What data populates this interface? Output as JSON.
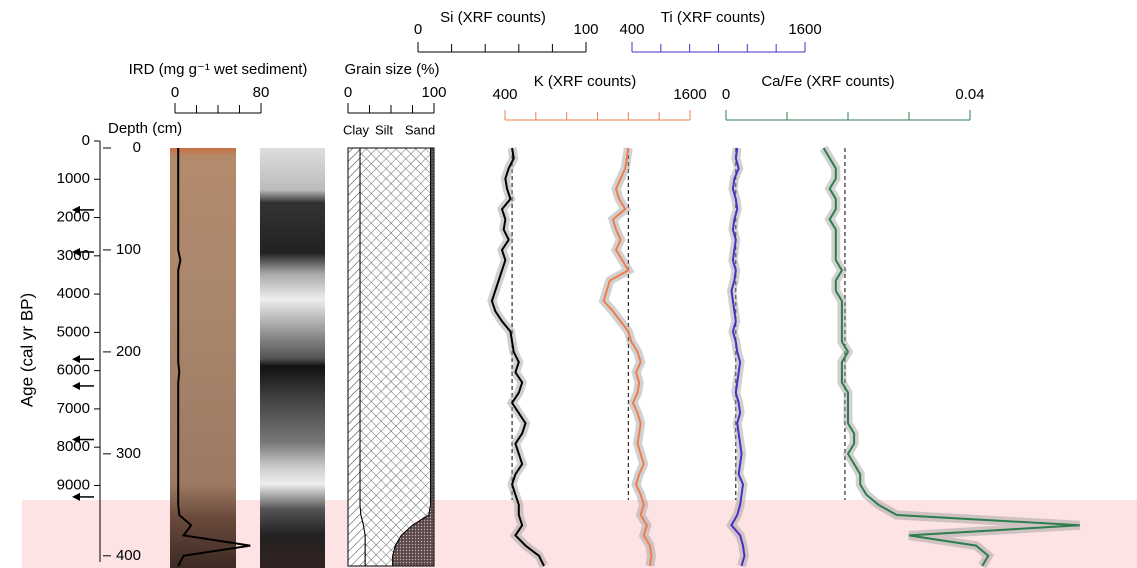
{
  "chart_data": [
    {
      "type": "age-axis",
      "ylabel": "Age (cal yr BP)",
      "ylim": [
        0,
        11000
      ],
      "yticks": [
        0,
        1000,
        2000,
        3000,
        4000,
        5000,
        6000,
        7000,
        8000,
        9000
      ],
      "markers": [
        1800,
        2900,
        5700,
        6400,
        7800,
        9300
      ]
    },
    {
      "type": "depth-axis",
      "ylabel": "Depth (cm)",
      "ylim": [
        0,
        410
      ],
      "yticks": [
        0,
        100,
        200,
        300,
        400
      ]
    },
    {
      "type": "line",
      "xlabel": "IRD (mg g⁻¹ wet sediment)",
      "xlim": [
        0,
        80
      ],
      "xticks": [
        0,
        80
      ],
      "xminorticks": [
        20,
        40,
        60
      ],
      "color": "#000000",
      "y": [
        0,
        10,
        20,
        30,
        40,
        50,
        60,
        70,
        80,
        90,
        100,
        110,
        120,
        130,
        140,
        150,
        160,
        170,
        180,
        190,
        200,
        210,
        220,
        230,
        240,
        250,
        260,
        270,
        280,
        290,
        300,
        310,
        320,
        330,
        340,
        350,
        360,
        370,
        380,
        390,
        400,
        410
      ],
      "values": [
        3,
        3,
        3,
        3,
        3,
        3,
        3,
        3,
        3,
        3,
        3,
        5,
        3,
        3,
        3,
        3,
        3,
        3,
        3,
        3,
        3,
        3,
        4,
        3,
        3,
        3,
        3,
        3,
        3,
        3,
        3,
        3,
        3,
        3,
        3,
        3,
        4,
        15,
        8,
        70,
        8,
        3
      ]
    },
    {
      "type": "stacked-area",
      "xlabel": "Grain size (%)",
      "xlim": [
        0,
        100
      ],
      "xticks": [
        0,
        100
      ],
      "xminorticks": [
        25,
        50,
        75
      ],
      "y": [
        0,
        10,
        20,
        30,
        40,
        50,
        60,
        70,
        80,
        90,
        100,
        110,
        120,
        130,
        140,
        150,
        160,
        170,
        180,
        190,
        200,
        210,
        220,
        230,
        240,
        250,
        260,
        270,
        280,
        290,
        300,
        310,
        320,
        330,
        340,
        350,
        360,
        370,
        380,
        390,
        400,
        410
      ],
      "series": [
        {
          "name": "Clay",
          "values": [
            14,
            14,
            14,
            14,
            14,
            14,
            14,
            14,
            14,
            14,
            14,
            14,
            14,
            14,
            14,
            14,
            14,
            14,
            14,
            14,
            14,
            14,
            14,
            14,
            14,
            14,
            14,
            14,
            14,
            14,
            14,
            14,
            14,
            14,
            14,
            14,
            15,
            18,
            20,
            20,
            20,
            20
          ]
        },
        {
          "name": "Silt",
          "values": [
            82,
            82,
            82,
            82,
            82,
            82,
            82,
            82,
            82,
            82,
            82,
            82,
            82,
            82,
            82,
            82,
            82,
            82,
            82,
            82,
            82,
            82,
            82,
            82,
            82,
            82,
            82,
            82,
            82,
            82,
            82,
            82,
            82,
            82,
            82,
            82,
            79,
            57,
            42,
            35,
            32,
            32
          ]
        },
        {
          "name": "Sand",
          "values": [
            4,
            4,
            4,
            4,
            4,
            4,
            4,
            4,
            4,
            4,
            4,
            4,
            4,
            4,
            4,
            4,
            4,
            4,
            4,
            4,
            4,
            4,
            4,
            4,
            4,
            4,
            4,
            4,
            4,
            4,
            4,
            4,
            4,
            4,
            4,
            4,
            6,
            25,
            38,
            45,
            48,
            48
          ]
        }
      ]
    },
    {
      "type": "line",
      "xlabel": "Si (XRF counts)",
      "xlim": [
        0,
        100
      ],
      "xticks": [
        0,
        100
      ],
      "xminorticks": [
        20,
        40,
        60,
        80
      ],
      "color": "#000000",
      "mean": 56,
      "y": [
        0,
        10,
        20,
        30,
        40,
        50,
        60,
        70,
        80,
        90,
        100,
        110,
        120,
        130,
        140,
        150,
        160,
        170,
        180,
        190,
        200,
        210,
        220,
        230,
        240,
        250,
        260,
        270,
        280,
        290,
        300,
        310,
        320,
        330,
        340,
        350,
        360,
        370,
        380,
        390,
        400,
        410
      ],
      "values": [
        56,
        57,
        54,
        52,
        53,
        55,
        50,
        52,
        51,
        54,
        50,
        52,
        50,
        48,
        46,
        44,
        46,
        50,
        55,
        56,
        57,
        60,
        58,
        62,
        60,
        56,
        60,
        64,
        62,
        58,
        60,
        62,
        58,
        56,
        58,
        60,
        60,
        62,
        58,
        64,
        72,
        75
      ]
    },
    {
      "type": "line",
      "xlabel": "K (XRF counts)",
      "xlim": [
        400,
        1600
      ],
      "xticks": [
        400,
        1600
      ],
      "xminorticks": [
        600,
        800,
        1000,
        1200,
        1400
      ],
      "color": "#ee7d4e",
      "mean": 1200,
      "y": [
        0,
        10,
        20,
        30,
        40,
        50,
        60,
        70,
        80,
        90,
        100,
        110,
        120,
        130,
        140,
        150,
        160,
        170,
        180,
        190,
        200,
        210,
        220,
        230,
        240,
        250,
        260,
        270,
        280,
        290,
        300,
        310,
        320,
        330,
        340,
        350,
        360,
        370,
        380,
        390,
        400,
        410
      ],
      "values": [
        1200,
        1190,
        1180,
        1150,
        1120,
        1140,
        1180,
        1100,
        1120,
        1150,
        1120,
        1160,
        1200,
        1080,
        1060,
        1040,
        1100,
        1150,
        1200,
        1220,
        1260,
        1280,
        1250,
        1270,
        1260,
        1230,
        1260,
        1280,
        1270,
        1260,
        1280,
        1300,
        1270,
        1250,
        1280,
        1300,
        1280,
        1320,
        1300,
        1340,
        1350,
        1340
      ]
    },
    {
      "type": "line",
      "xlabel": "Ti (XRF counts)",
      "xlim": [
        400,
        1600
      ],
      "xticks": [
        400,
        1600
      ],
      "xminorticks": [
        600,
        800,
        1000,
        1200,
        1400
      ],
      "color": "#4b2fc4",
      "mean": 1120,
      "y": [
        0,
        10,
        20,
        30,
        40,
        50,
        60,
        70,
        80,
        90,
        100,
        110,
        120,
        130,
        140,
        150,
        160,
        170,
        180,
        190,
        200,
        210,
        220,
        230,
        240,
        250,
        260,
        270,
        280,
        290,
        300,
        310,
        320,
        330,
        340,
        350,
        360,
        370,
        380,
        390,
        400,
        410
      ],
      "values": [
        1130,
        1120,
        1140,
        1110,
        1100,
        1120,
        1130,
        1110,
        1100,
        1120,
        1110,
        1100,
        1120,
        1110,
        1090,
        1100,
        1110,
        1120,
        1100,
        1120,
        1130,
        1150,
        1140,
        1130,
        1120,
        1140,
        1150,
        1130,
        1140,
        1150,
        1160,
        1150,
        1140,
        1170,
        1160,
        1150,
        1130,
        1090,
        1150,
        1170,
        1180,
        1160
      ]
    },
    {
      "type": "line",
      "xlabel": "Ca/Fe (XRF counts)",
      "xlim": [
        0,
        0.04
      ],
      "xticks": [
        0,
        0.04
      ],
      "xminorticks": [
        0.01,
        0.02,
        0.03
      ],
      "color": "#2e7d4f",
      "mean": 0.0195,
      "y": [
        0,
        10,
        20,
        30,
        40,
        50,
        60,
        70,
        80,
        90,
        100,
        110,
        120,
        130,
        140,
        150,
        160,
        170,
        180,
        190,
        200,
        210,
        220,
        230,
        240,
        250,
        260,
        270,
        280,
        290,
        300,
        310,
        320,
        330,
        340,
        350,
        360,
        370,
        380,
        390,
        400,
        410
      ],
      "values": [
        0.016,
        0.017,
        0.018,
        0.018,
        0.017,
        0.018,
        0.018,
        0.017,
        0.018,
        0.018,
        0.018,
        0.018,
        0.019,
        0.018,
        0.018,
        0.019,
        0.019,
        0.019,
        0.019,
        0.019,
        0.02,
        0.019,
        0.019,
        0.019,
        0.02,
        0.02,
        0.02,
        0.02,
        0.021,
        0.021,
        0.02,
        0.021,
        0.022,
        0.022,
        0.023,
        0.025,
        0.028,
        0.058,
        0.03,
        0.041,
        0.043,
        0.042
      ]
    }
  ]
}
